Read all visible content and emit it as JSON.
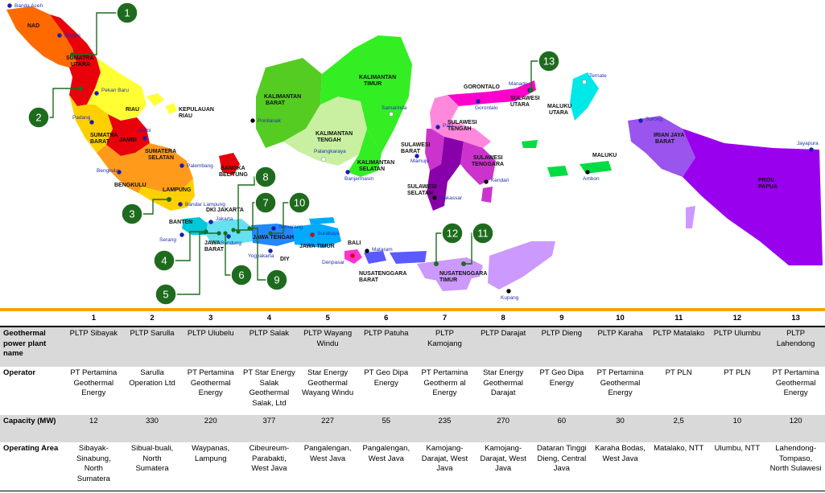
{
  "map": {
    "provinces": [
      {
        "label": "NAD",
        "color": "#ff6a00"
      },
      {
        "label": "SUMATERA UTARA",
        "color": "#e8000b"
      },
      {
        "label": "RIAU",
        "color": "#ffff33"
      },
      {
        "label": "KEPULAUAN RIAU",
        "color": "#ffff33"
      },
      {
        "label": "SUMATRA BARAT",
        "color": "#ffd000"
      },
      {
        "label": "JAMBI",
        "color": "#e8000b"
      },
      {
        "label": "SUMATERA SELATAN",
        "color": "#ff9a1a"
      },
      {
        "label": "BENGKULU",
        "color": "#ff9a1a"
      },
      {
        "label": "LAMPUNG",
        "color": "#ffd000"
      },
      {
        "label": "BANGKA BELITUNG",
        "color": "#e8000b"
      },
      {
        "label": "BANTEN",
        "color": "#00c8d8"
      },
      {
        "label": "DKI JAKARTA",
        "color": "#00c8d8"
      },
      {
        "label": "JAWA BARAT",
        "color": "#66e0f0"
      },
      {
        "label": "JAWA TENGAH",
        "color": "#2288ff"
      },
      {
        "label": "DIY",
        "color": "#2288ff"
      },
      {
        "label": "JAWA TIMUR",
        "color": "#00aaff"
      },
      {
        "label": "BALI",
        "color": "#ff33cc"
      },
      {
        "label": "NUSATENGGARA BARAT",
        "color": "#5a5aff"
      },
      {
        "label": "NUSATENGGARA TIMUR",
        "color": "#cc99ff"
      },
      {
        "label": "KALIMANTAN BARAT",
        "color": "#55cc22"
      },
      {
        "label": "KALIMANTAN TENGAH",
        "color": "#c8f0a0"
      },
      {
        "label": "KALIMANTAN TIMUR",
        "color": "#33ee22"
      },
      {
        "label": "KALIMANTAN SELATAN",
        "color": "#33ee22"
      },
      {
        "label": "GORONTALO",
        "color": "#ff00cc"
      },
      {
        "label": "SULAWESI UTARA",
        "color": "#ff00cc"
      },
      {
        "label": "SULAWESI TENGAH",
        "color": "#ff88dd"
      },
      {
        "label": "SULAWESI BARAT",
        "color": "#cc33cc"
      },
      {
        "label": "SULAWESI TENGGARA",
        "color": "#cc33cc"
      },
      {
        "label": "SULAWESI SELATAN",
        "color": "#8800aa"
      },
      {
        "label": "MALUKU UTARA",
        "color": "#00e8e8"
      },
      {
        "label": "MALUKU",
        "color": "#00dd44"
      },
      {
        "label": "IRIAN JAYA BARAT",
        "color": "#9955ee"
      },
      {
        "label": "PROV. PAPUA",
        "color": "#9900ee"
      }
    ],
    "cities": [
      "Banda Aceh",
      "Medan",
      "Pekan Baru",
      "Padang",
      "Jambi",
      "Palembang",
      "Bengkulu",
      "Bandar Lampung",
      "Serang",
      "Jakarta",
      "Bandung",
      "Semarang",
      "Yogyakarta",
      "Surabaya",
      "Denpasar",
      "Mataram",
      "Kupang",
      "Pontianak",
      "Palangkaraya",
      "Samarinda",
      "Banjarmasin",
      "Manado",
      "Gorontalo",
      "Palu",
      "Mamuju",
      "Makassar",
      "Kendari",
      "Ternate",
      "Ambon",
      "Sorong",
      "Jayapura"
    ],
    "marker_color": "#1e6b1e"
  },
  "table": {
    "header_numbers": [
      "1",
      "2",
      "3",
      "4",
      "5",
      "6",
      "7",
      "8",
      "9",
      "10",
      "11",
      "12",
      "13"
    ],
    "rows": [
      {
        "label": "Geothermal power plant name",
        "cells": [
          "PLTP Sibayak",
          "PLTP Sarulla",
          "PLTP Ulubelu",
          "PLTP Salak",
          "PLTP Wayang Windu",
          "PLTP Patuha",
          "PLTP Kamojang",
          "PLTP Darajat",
          "PLTP Dieng",
          "PLTP Karaha",
          "PLTP Matalako",
          "PLTP Ulumbu",
          "PLTP Lahendong"
        ]
      },
      {
        "label": "Operator",
        "cells": [
          "PT Pertamina Geothermal Energy",
          "Sarulla Operation Ltd",
          "PT Pertamina Geothermal Energy",
          "PT Star Energy Salak Geothermal Salak, Ltd",
          "Star Energy Geothermal Wayang Windu",
          "PT Geo Dipa Energy",
          "PT Pertamina Geotherm al Energy",
          "Star Energy Geothermal Darajat",
          "PT Geo Dipa Energy",
          "PT Pertamina Geothermal Energy",
          "PT PLN",
          "PT PLN",
          "PT Pertamina Geothermal Energy"
        ]
      },
      {
        "label": "Capacity (MW)",
        "cells": [
          "12",
          "330",
          "220",
          "377",
          "227",
          "55",
          "235",
          "270",
          "60",
          "30",
          "2,5",
          "10",
          "120"
        ]
      },
      {
        "label": "Operating Area",
        "cells": [
          "Sibayak-Sinabung, North Sumatera",
          "Sibual-buali, North Sumatera",
          "Waypanas, Lampung",
          "Cibeureum-Parabakti, West Java",
          "Pangalengan, West Java",
          "Pangalengan, West Java",
          "Kamojang-Darajat, West Java",
          "Kamojang-Darajat, West Java",
          "Dataran Tinggi Dieng, Central Java",
          "Karaha Bodas, West Java",
          "Matalako, NTT",
          "Ulumbu, NTT",
          "Lahendong-Tompaso, North Sulawesi"
        ]
      }
    ]
  }
}
